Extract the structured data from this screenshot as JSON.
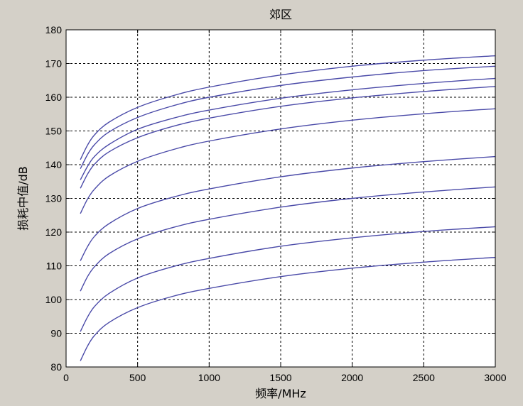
{
  "chart_data": {
    "type": "line",
    "title": "郊区",
    "xlabel": "频率/MHz",
    "ylabel": "损耗中值/dB",
    "xlim": [
      0,
      3000
    ],
    "ylim": [
      80,
      180
    ],
    "xticks": [
      0,
      500,
      1000,
      1500,
      2000,
      2500,
      3000
    ],
    "yticks": [
      80,
      90,
      100,
      110,
      120,
      130,
      140,
      150,
      160,
      170,
      180
    ],
    "grid": true,
    "line_color": "#4a4aa8",
    "x": [
      100,
      150,
      200,
      300,
      500,
      750,
      1000,
      1500,
      2000,
      2500,
      3000
    ],
    "series": [
      {
        "values": [
          141.5,
          145.8,
          148.9,
          152.6,
          157.0,
          160.5,
          163.0,
          166.6,
          169.2,
          171.0,
          172.3
        ]
      },
      {
        "values": [
          138.8,
          143.0,
          146.0,
          149.7,
          154.0,
          157.5,
          160.0,
          163.5,
          166.0,
          167.9,
          169.2
        ]
      },
      {
        "values": [
          135.5,
          139.5,
          142.5,
          146.0,
          150.5,
          153.8,
          156.2,
          159.7,
          162.2,
          164.1,
          165.6
        ]
      },
      {
        "values": [
          133.0,
          137.2,
          140.2,
          143.8,
          148.0,
          151.4,
          153.8,
          157.3,
          159.8,
          161.7,
          163.2
        ]
      },
      {
        "values": [
          125.5,
          129.8,
          132.8,
          136.6,
          141.0,
          144.5,
          147.0,
          150.6,
          153.2,
          155.1,
          156.6
        ]
      },
      {
        "values": [
          111.5,
          115.7,
          118.8,
          122.5,
          127.0,
          130.4,
          132.8,
          136.4,
          139.0,
          140.9,
          142.4
        ]
      },
      {
        "values": [
          102.5,
          106.8,
          109.8,
          113.6,
          118.0,
          121.4,
          123.8,
          127.4,
          130.0,
          131.9,
          133.4
        ]
      },
      {
        "values": [
          90.5,
          94.8,
          98.0,
          101.8,
          106.4,
          109.8,
          112.2,
          115.8,
          118.3,
          120.2,
          121.6
        ]
      },
      {
        "values": [
          81.8,
          86.2,
          89.4,
          93.2,
          97.6,
          101.0,
          103.3,
          106.8,
          109.3,
          111.1,
          112.5
        ]
      }
    ]
  }
}
